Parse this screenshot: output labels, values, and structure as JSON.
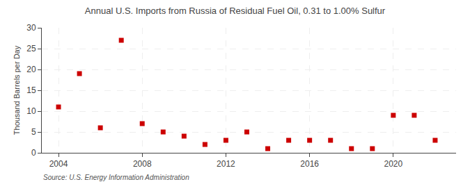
{
  "chart_data": {
    "type": "scatter",
    "title": "Annual U.S. Imports from Russia of Residual Fuel Oil, 0.31 to 1.00% Sulfur",
    "ylabel": "Thousand Barrels per Day",
    "annotations": [
      "Source: U.S. Energy Information Administration"
    ],
    "x": [
      2004,
      2005,
      2006,
      2007,
      2008,
      2009,
      2010,
      2011,
      2012,
      2013,
      2014,
      2015,
      2016,
      2017,
      2018,
      2019,
      2020,
      2021,
      2022
    ],
    "values": [
      11,
      19,
      6,
      27,
      7,
      5,
      4,
      2,
      3,
      5,
      1,
      3,
      3,
      3,
      1,
      1,
      9,
      9,
      3
    ],
    "color": "#cc0000",
    "marker": "square",
    "xlim": [
      2003.2,
      2023
    ],
    "xticks": [
      2004,
      2008,
      2012,
      2016,
      2020
    ],
    "ylim": [
      0,
      30
    ],
    "yticks": [
      0,
      5,
      10,
      15,
      20,
      25,
      30
    ],
    "grid": true
  }
}
